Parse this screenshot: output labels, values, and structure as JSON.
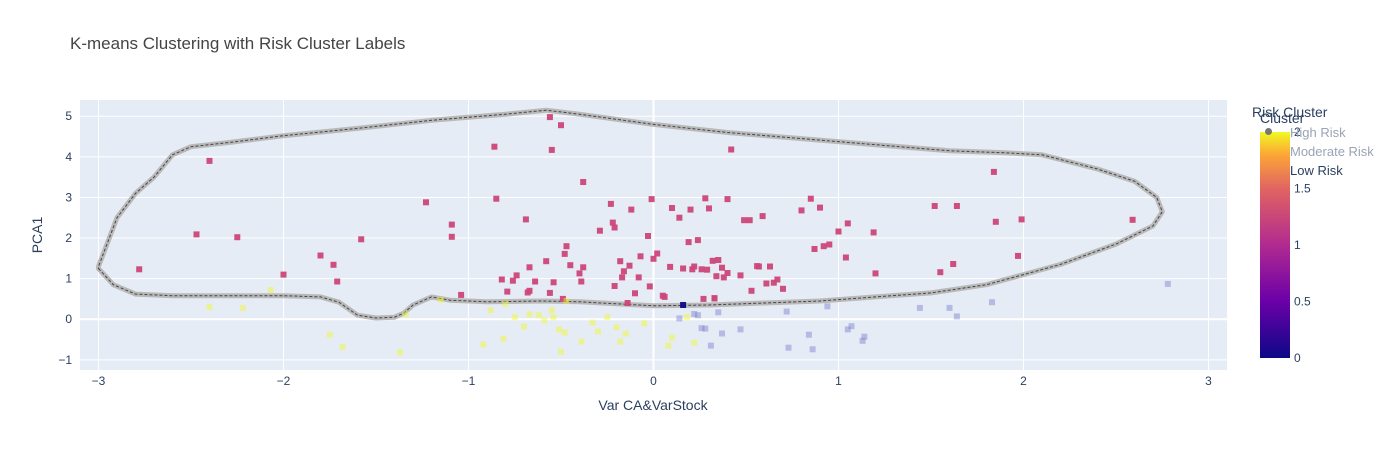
{
  "title": "K-means Clustering with Risk Cluster Labels",
  "chart_data": {
    "type": "scatter",
    "title": "K-means Clustering with Risk Cluster Labels",
    "xlabel": "Var CA&VarStock",
    "ylabel": "PCA1",
    "xlim": [
      -3.1,
      3.1
    ],
    "ylim": [
      -1.25,
      5.4
    ],
    "x_ticks": [
      -3,
      -2,
      -1,
      0,
      1,
      2,
      3
    ],
    "y_ticks": [
      -1,
      0,
      1,
      2,
      3,
      4,
      5
    ],
    "grid": true,
    "legend": {
      "title": "Risk Cluster",
      "placement": "top-right",
      "items": [
        "High Risk",
        "Moderate Risk",
        "Low Risk"
      ]
    },
    "colorbar": {
      "title": "Cluster",
      "range": [
        0,
        2
      ],
      "ticks": [
        "0",
        "0.5",
        "1",
        "1.5",
        "2"
      ]
    },
    "series": [
      {
        "cluster": 1,
        "color": "#cc4778",
        "marker": "square",
        "x": [
          -2.78,
          -2.47,
          -2.4,
          -2.25,
          -2.0,
          -1.8,
          -1.73,
          -1.71,
          -1.58,
          -1.23,
          -1.09,
          -1.09,
          -1.04,
          -0.86,
          -0.85,
          -0.82,
          -0.79,
          -0.76,
          -0.74,
          -0.69,
          -0.68,
          -0.67,
          -0.67,
          -0.64,
          -0.58,
          -0.56,
          -0.56,
          -0.55,
          -0.54,
          -0.5,
          -0.49,
          -0.48,
          -0.47,
          -0.45,
          -0.4,
          -0.39,
          -0.38,
          -0.38,
          -0.29,
          -0.23,
          -0.22,
          -0.21,
          -0.21,
          -0.18,
          -0.17,
          -0.16,
          -0.14,
          -0.13,
          -0.12,
          -0.1,
          -0.08,
          -0.07,
          -0.03,
          -0.02,
          -0.01,
          0.0,
          0.02,
          0.05,
          0.06,
          0.09,
          0.1,
          0.14,
          0.16,
          0.19,
          0.2,
          0.21,
          0.22,
          0.24,
          0.26,
          0.27,
          0.28,
          0.29,
          0.3,
          0.32,
          0.33,
          0.33,
          0.34,
          0.35,
          0.37,
          0.38,
          0.4,
          0.4,
          0.42,
          0.47,
          0.49,
          0.52,
          0.53,
          0.56,
          0.57,
          0.59,
          0.61,
          0.63,
          0.65,
          0.67,
          0.7,
          0.8,
          0.85,
          0.87,
          0.9,
          0.92,
          0.95,
          1.0,
          1.04,
          1.05,
          1.19,
          1.2,
          1.52,
          1.55,
          1.62,
          1.64,
          1.84,
          1.85,
          1.97,
          1.99,
          2.59
        ],
        "y": [
          1.23,
          2.09,
          3.9,
          2.02,
          1.1,
          1.57,
          1.34,
          0.93,
          1.97,
          2.88,
          2.33,
          2.03,
          0.6,
          4.25,
          2.97,
          0.98,
          0.68,
          0.95,
          1.08,
          2.46,
          0.66,
          0.7,
          1.28,
          0.93,
          1.43,
          4.98,
          0.65,
          4.17,
          0.91,
          4.78,
          0.5,
          1.61,
          1.8,
          1.33,
          1.13,
          0.93,
          3.38,
          1.28,
          2.18,
          2.84,
          2.38,
          2.26,
          0.82,
          1.43,
          1.03,
          1.18,
          0.4,
          1.32,
          2.7,
          0.64,
          1.03,
          1.55,
          2.05,
          0.81,
          2.96,
          1.49,
          1.62,
          0.58,
          0.55,
          1.29,
          2.74,
          2.5,
          1.25,
          1.9,
          2.7,
          1.23,
          1.3,
          1.95,
          1.23,
          0.5,
          2.98,
          1.22,
          2.73,
          1.44,
          0.51,
          0.52,
          1.06,
          1.46,
          1.27,
          1.03,
          2.96,
          1.14,
          4.18,
          1.08,
          2.44,
          2.44,
          0.7,
          1.31,
          1.3,
          2.54,
          0.88,
          1.3,
          0.9,
          0.98,
          0.75,
          2.68,
          2.97,
          1.73,
          2.75,
          1.8,
          1.84,
          2.16,
          1.52,
          2.36,
          2.14,
          1.13,
          2.79,
          1.16,
          1.36,
          2.79,
          3.63,
          2.4,
          1.56,
          2.46,
          2.45
        ]
      },
      {
        "cluster": 2,
        "color": "#f0f921",
        "marker": "square",
        "x": [
          -2.4,
          -2.22,
          -1.75,
          -1.68,
          -1.37,
          -1.34,
          -1.15,
          -0.92,
          -0.88,
          -0.81,
          -0.8,
          -0.75,
          -0.7,
          -0.67,
          -0.62,
          -0.59,
          -0.55,
          -0.54,
          -0.51,
          -0.5,
          -0.48,
          -0.47,
          -0.39,
          -0.33,
          -0.3,
          -0.25,
          -0.2,
          -0.18,
          -0.15,
          -0.05,
          0.08,
          0.1,
          0.18,
          0.22
        ],
        "y": [
          0.3,
          0.28,
          -0.38,
          -0.68,
          -0.82,
          0.12,
          0.48,
          -0.62,
          0.22,
          -0.48,
          0.38,
          0.05,
          -0.18,
          0.12,
          0.1,
          -0.03,
          0.22,
          0.05,
          -0.25,
          -0.8,
          -0.33,
          0.45,
          -0.55,
          -0.08,
          -0.3,
          0.05,
          -0.2,
          -0.55,
          -0.35,
          -0.1,
          -0.65,
          -0.45,
          0.05,
          -0.58
        ]
      },
      {
        "cluster": 0,
        "color": "#7b7fc9",
        "marker": "square",
        "x": [
          0.14,
          0.22,
          0.24,
          0.26,
          0.28,
          0.31,
          0.35,
          0.37,
          0.47,
          0.72,
          0.73,
          0.84,
          0.86,
          0.94,
          1.05,
          1.07,
          1.13,
          1.14,
          1.44,
          1.6,
          1.64,
          1.83,
          2.78
        ],
        "y": [
          0.02,
          0.13,
          0.1,
          -0.22,
          -0.23,
          -0.65,
          0.17,
          -0.35,
          -0.25,
          0.19,
          -0.7,
          -0.38,
          -0.74,
          0.32,
          -0.25,
          -0.17,
          -0.53,
          -0.43,
          0.28,
          0.28,
          0.07,
          0.42,
          0.87
        ]
      },
      {
        "cluster": 0,
        "color": "#0d0887",
        "marker": "square",
        "x": [
          0.16
        ],
        "y": [
          0.35
        ]
      },
      {
        "cluster": 2,
        "color": "#f0f921",
        "marker": "square",
        "x": [
          -2.07
        ],
        "y": [
          0.72
        ]
      }
    ],
    "boundary": {
      "x": [
        -3.0,
        -2.92,
        -2.8,
        -2.6,
        -2.3,
        -2.0,
        -1.8,
        -1.7,
        -1.6,
        -1.5,
        -1.4,
        -1.35,
        -1.3,
        -1.2,
        -1.1,
        -0.9,
        -0.6,
        -0.4,
        -0.2,
        0.0,
        0.3,
        0.6,
        0.9,
        1.2,
        1.5,
        1.8,
        2.0,
        2.2,
        2.5,
        2.7,
        2.75,
        2.72,
        2.6,
        2.4,
        2.1,
        1.9,
        1.6,
        1.2,
        0.8,
        0.4,
        0.0,
        -0.4,
        -0.58,
        -0.8,
        -1.2,
        -1.6,
        -2.0,
        -2.3,
        -2.5,
        -2.6,
        -2.7,
        -2.8,
        -2.9,
        -3.0
      ],
      "y": [
        1.25,
        0.85,
        0.62,
        0.58,
        0.58,
        0.58,
        0.55,
        0.42,
        0.1,
        0.03,
        0.05,
        0.15,
        0.35,
        0.55,
        0.47,
        0.43,
        0.45,
        0.43,
        0.38,
        0.33,
        0.35,
        0.4,
        0.45,
        0.55,
        0.65,
        0.85,
        1.1,
        1.35,
        1.85,
        2.3,
        2.65,
        3.0,
        3.4,
        3.7,
        4.05,
        4.1,
        4.15,
        4.3,
        4.45,
        4.6,
        4.8,
        5.05,
        5.15,
        5.05,
        4.9,
        4.7,
        4.52,
        4.35,
        4.25,
        4.05,
        3.5,
        3.1,
        2.5,
        1.3
      ]
    }
  }
}
